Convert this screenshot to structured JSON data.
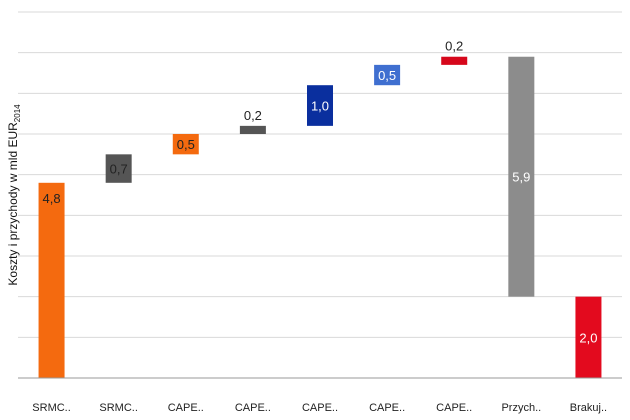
{
  "chart_data": {
    "type": "bar",
    "subtype": "waterfall",
    "ylabel": "Koszty i przychody w mld EUR",
    "ylabel_subscript": "2014",
    "ylim": [
      0,
      9
    ],
    "grid": "horizontal",
    "bars": [
      {
        "category": "SRMC..",
        "base": 0,
        "value": 4.8,
        "label": "4,8",
        "color": "#F46A0F",
        "label_color": "#222222",
        "label_pos": "top"
      },
      {
        "category": "SRMC..",
        "base": 4.8,
        "value": 0.7,
        "label": "0,7",
        "color": "#555555",
        "label_color": "#222222",
        "label_pos": "center"
      },
      {
        "category": "CAPE..",
        "base": 5.5,
        "value": 0.5,
        "label": "0,5",
        "color": "#F46A0F",
        "label_color": "#222222",
        "label_pos": "center"
      },
      {
        "category": "CAPE..",
        "base": 6.0,
        "value": 0.2,
        "label": "0,2",
        "color": "#555555",
        "label_color": "#222222",
        "label_pos": "above"
      },
      {
        "category": "CAPE..",
        "base": 6.2,
        "value": 1.0,
        "label": "1,0",
        "color": "#0A2F9E",
        "label_color": "#ffffff",
        "label_pos": "center"
      },
      {
        "category": "CAPE..",
        "base": 7.2,
        "value": 0.5,
        "label": "0,5",
        "color": "#3F6FD0",
        "label_color": "#ffffff",
        "label_pos": "center"
      },
      {
        "category": "CAPE..",
        "base": 7.7,
        "value": 0.2,
        "label": "0,2",
        "color": "#D6071B",
        "label_color": "#222222",
        "label_pos": "above"
      },
      {
        "category": "Przych..",
        "base": 2.0,
        "value": 5.9,
        "label": "5,9",
        "color": "#8C8C8C",
        "label_color": "#ffffff",
        "label_pos": "center"
      },
      {
        "category": "Brakuj..",
        "base": 0,
        "value": 2.0,
        "label": "2,0",
        "color": "#E30A1E",
        "label_color": "#ffffff",
        "label_pos": "center"
      }
    ]
  }
}
